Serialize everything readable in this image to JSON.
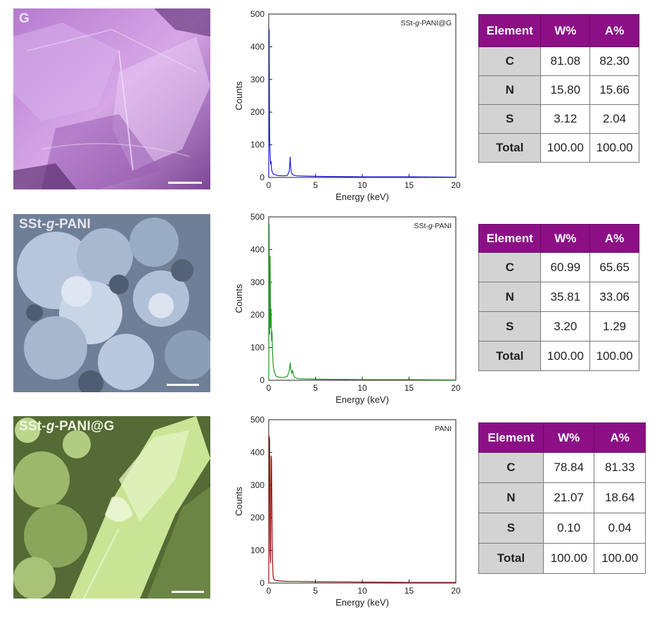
{
  "panels": [
    {
      "id": "g",
      "sem": {
        "label_main": "G",
        "label_italic": "",
        "label_rest": ""
      },
      "table": {
        "headers": [
          "Element",
          "W%",
          "A%"
        ],
        "rows": [
          {
            "element": "C",
            "w": "81.08",
            "a": "82.30"
          },
          {
            "element": "N",
            "w": "15.80",
            "a": "15.66"
          },
          {
            "element": "S",
            "w": "3.12",
            "a": "2.04"
          },
          {
            "element": "Total",
            "w": "100.00",
            "a": "100.00"
          }
        ]
      }
    },
    {
      "id": "sst-g-pani",
      "sem": {
        "label_main": "SSt-",
        "label_italic": "g",
        "label_rest": "-PANI"
      },
      "table": {
        "headers": [
          "Element",
          "W%",
          "A%"
        ],
        "rows": [
          {
            "element": "C",
            "w": "60.99",
            "a": "65.65"
          },
          {
            "element": "N",
            "w": "35.81",
            "a": "33.06"
          },
          {
            "element": "S",
            "w": "3.20",
            "a": "1.29"
          },
          {
            "element": "Total",
            "w": "100.00",
            "a": "100.00"
          }
        ]
      }
    },
    {
      "id": "sst-g-pani-g",
      "sem": {
        "label_main": "SSt-",
        "label_italic": "g",
        "label_rest": "-PANI@G"
      },
      "table": {
        "headers": [
          "Element",
          "W%",
          "A%"
        ],
        "rows": [
          {
            "element": "C",
            "w": "78.84",
            "a": "81.33"
          },
          {
            "element": "N",
            "w": "21.07",
            "a": "18.64"
          },
          {
            "element": "S",
            "w": "0.10",
            "a": "0.04"
          },
          {
            "element": "Total",
            "w": "100.00",
            "a": "100.00"
          }
        ]
      }
    }
  ],
  "colors": {
    "g_tint": "#c48ad6",
    "pani_tint": "#9fb1c9",
    "panig_tint": "#c2e08e",
    "header_purple": "#8c0f86",
    "spec_blue": "#1b1be0",
    "spec_green": "#1f9a1f",
    "spec_red": "#9e1010"
  },
  "chart_data": [
    {
      "type": "line",
      "legend": "SSt-g-PANI@G",
      "legend_parts": [
        "SSt-",
        "g",
        "-PANI@G"
      ],
      "xlabel": "Energy (keV)",
      "ylabel": "Counts",
      "xlim": [
        0,
        20
      ],
      "ylim": [
        0,
        500
      ],
      "xticks": [
        0,
        5,
        10,
        15,
        20
      ],
      "yticks": [
        0,
        100,
        200,
        300,
        400,
        500
      ],
      "color": "#1b1be0",
      "series": [
        {
          "x": [
            0.0,
            0.05,
            0.1,
            0.15,
            0.2,
            0.25,
            0.3,
            0.4,
            0.5,
            0.7,
            1.0,
            1.5,
            2.0,
            2.2,
            2.3,
            2.35,
            2.4,
            2.5,
            2.7,
            3.0,
            4.0,
            6.0,
            10.0,
            15.0,
            20.0
          ],
          "y": [
            0,
            454,
            120,
            75,
            40,
            50,
            25,
            15,
            10,
            8,
            6,
            5,
            6,
            20,
            63,
            30,
            20,
            10,
            7,
            5,
            4,
            3,
            2,
            2,
            1
          ]
        }
      ]
    },
    {
      "type": "line",
      "legend": "SSt-g-PANI",
      "legend_parts": [
        "SSt-",
        "g",
        "-PANI"
      ],
      "xlabel": "Energy (keV)",
      "ylabel": "Counts",
      "xlim": [
        0,
        20
      ],
      "ylim": [
        0,
        500
      ],
      "xticks": [
        0,
        5,
        10,
        15,
        20
      ],
      "yticks": [
        0,
        100,
        200,
        300,
        400,
        500
      ],
      "color": "#1f9a1f",
      "series": [
        {
          "x": [
            0.0,
            0.05,
            0.1,
            0.15,
            0.2,
            0.25,
            0.3,
            0.35,
            0.4,
            0.45,
            0.5,
            0.6,
            0.7,
            0.8,
            1.0,
            1.5,
            2.0,
            2.2,
            2.3,
            2.35,
            2.45,
            2.55,
            2.65,
            2.8,
            3.2,
            4.0,
            6.0,
            10.0,
            15.0,
            20.0
          ],
          "y": [
            0,
            478,
            140,
            380,
            160,
            220,
            120,
            150,
            90,
            60,
            40,
            25,
            18,
            12,
            10,
            8,
            12,
            30,
            54,
            35,
            22,
            30,
            15,
            8,
            5,
            4,
            3,
            2,
            2,
            1
          ]
        }
      ]
    },
    {
      "type": "line",
      "legend": "PANI",
      "legend_parts": [
        "PANI",
        "",
        ""
      ],
      "xlabel": "Energy (keV)",
      "ylabel": "Counts",
      "xlim": [
        0,
        20
      ],
      "ylim": [
        0,
        500
      ],
      "xticks": [
        0,
        5,
        10,
        15,
        20
      ],
      "yticks": [
        0,
        100,
        200,
        300,
        400,
        500
      ],
      "color": "#9e1010",
      "series": [
        {
          "x": [
            0.0,
            0.05,
            0.1,
            0.15,
            0.2,
            0.25,
            0.3,
            0.35,
            0.4,
            0.45,
            0.5,
            0.6,
            0.8,
            1.0,
            1.5,
            2.0,
            3.0,
            5.0,
            10.0,
            15.0,
            20.0
          ],
          "y": [
            0,
            450,
            440,
            100,
            60,
            390,
            380,
            200,
            80,
            30,
            15,
            10,
            8,
            7,
            6,
            5,
            5,
            4,
            3,
            2,
            2
          ]
        }
      ]
    }
  ]
}
